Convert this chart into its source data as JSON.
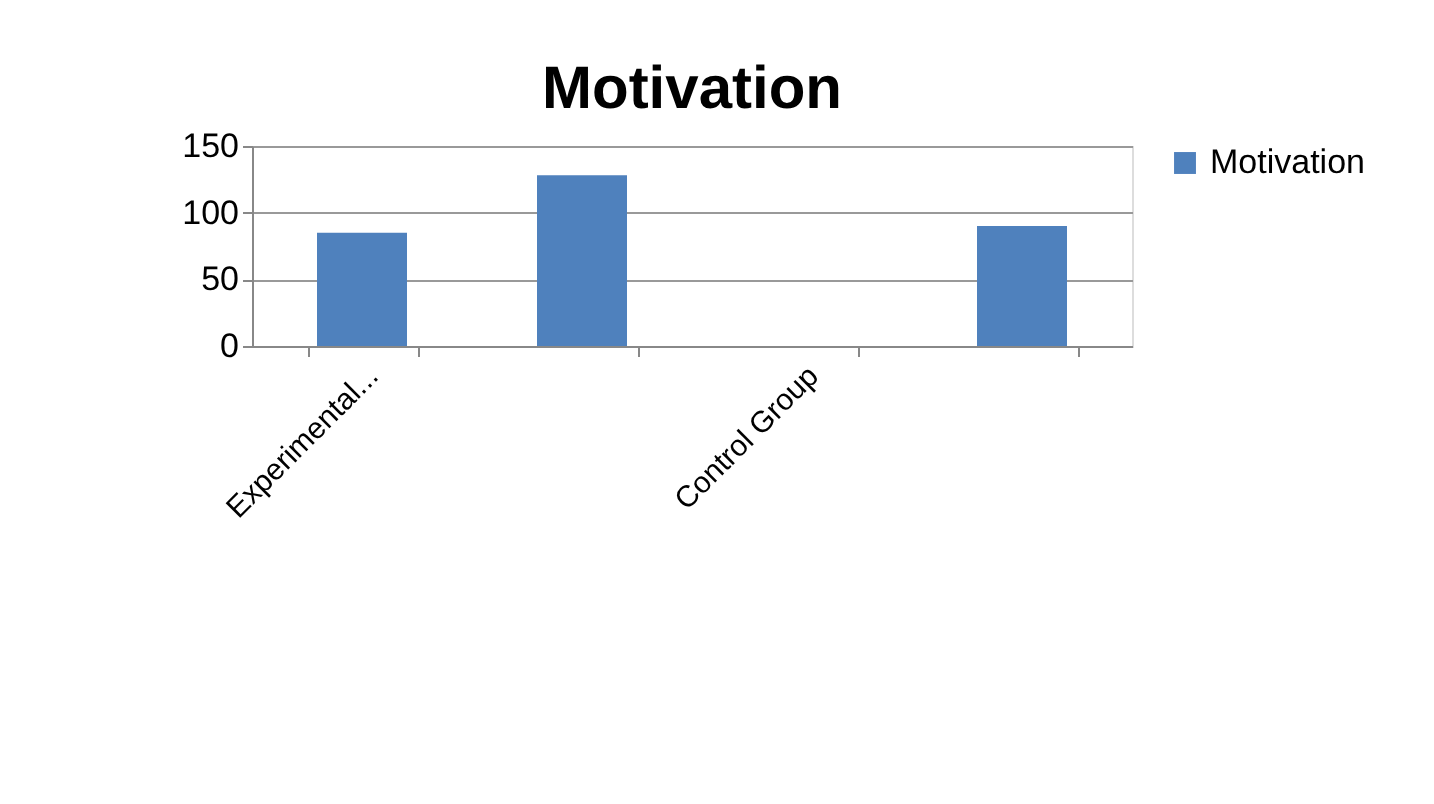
{
  "chart_data": {
    "type": "bar",
    "title": "Motivation",
    "categories": [
      "Experimental...",
      null,
      "Control Group",
      null
    ],
    "series": [
      {
        "name": "Motivation",
        "color": "#4f81bd",
        "values": [
          85,
          128,
          0,
          90
        ]
      }
    ],
    "ylim": [
      0,
      150
    ],
    "yticks": [
      0,
      50,
      100,
      150
    ],
    "grid": "y",
    "legend": "right"
  }
}
